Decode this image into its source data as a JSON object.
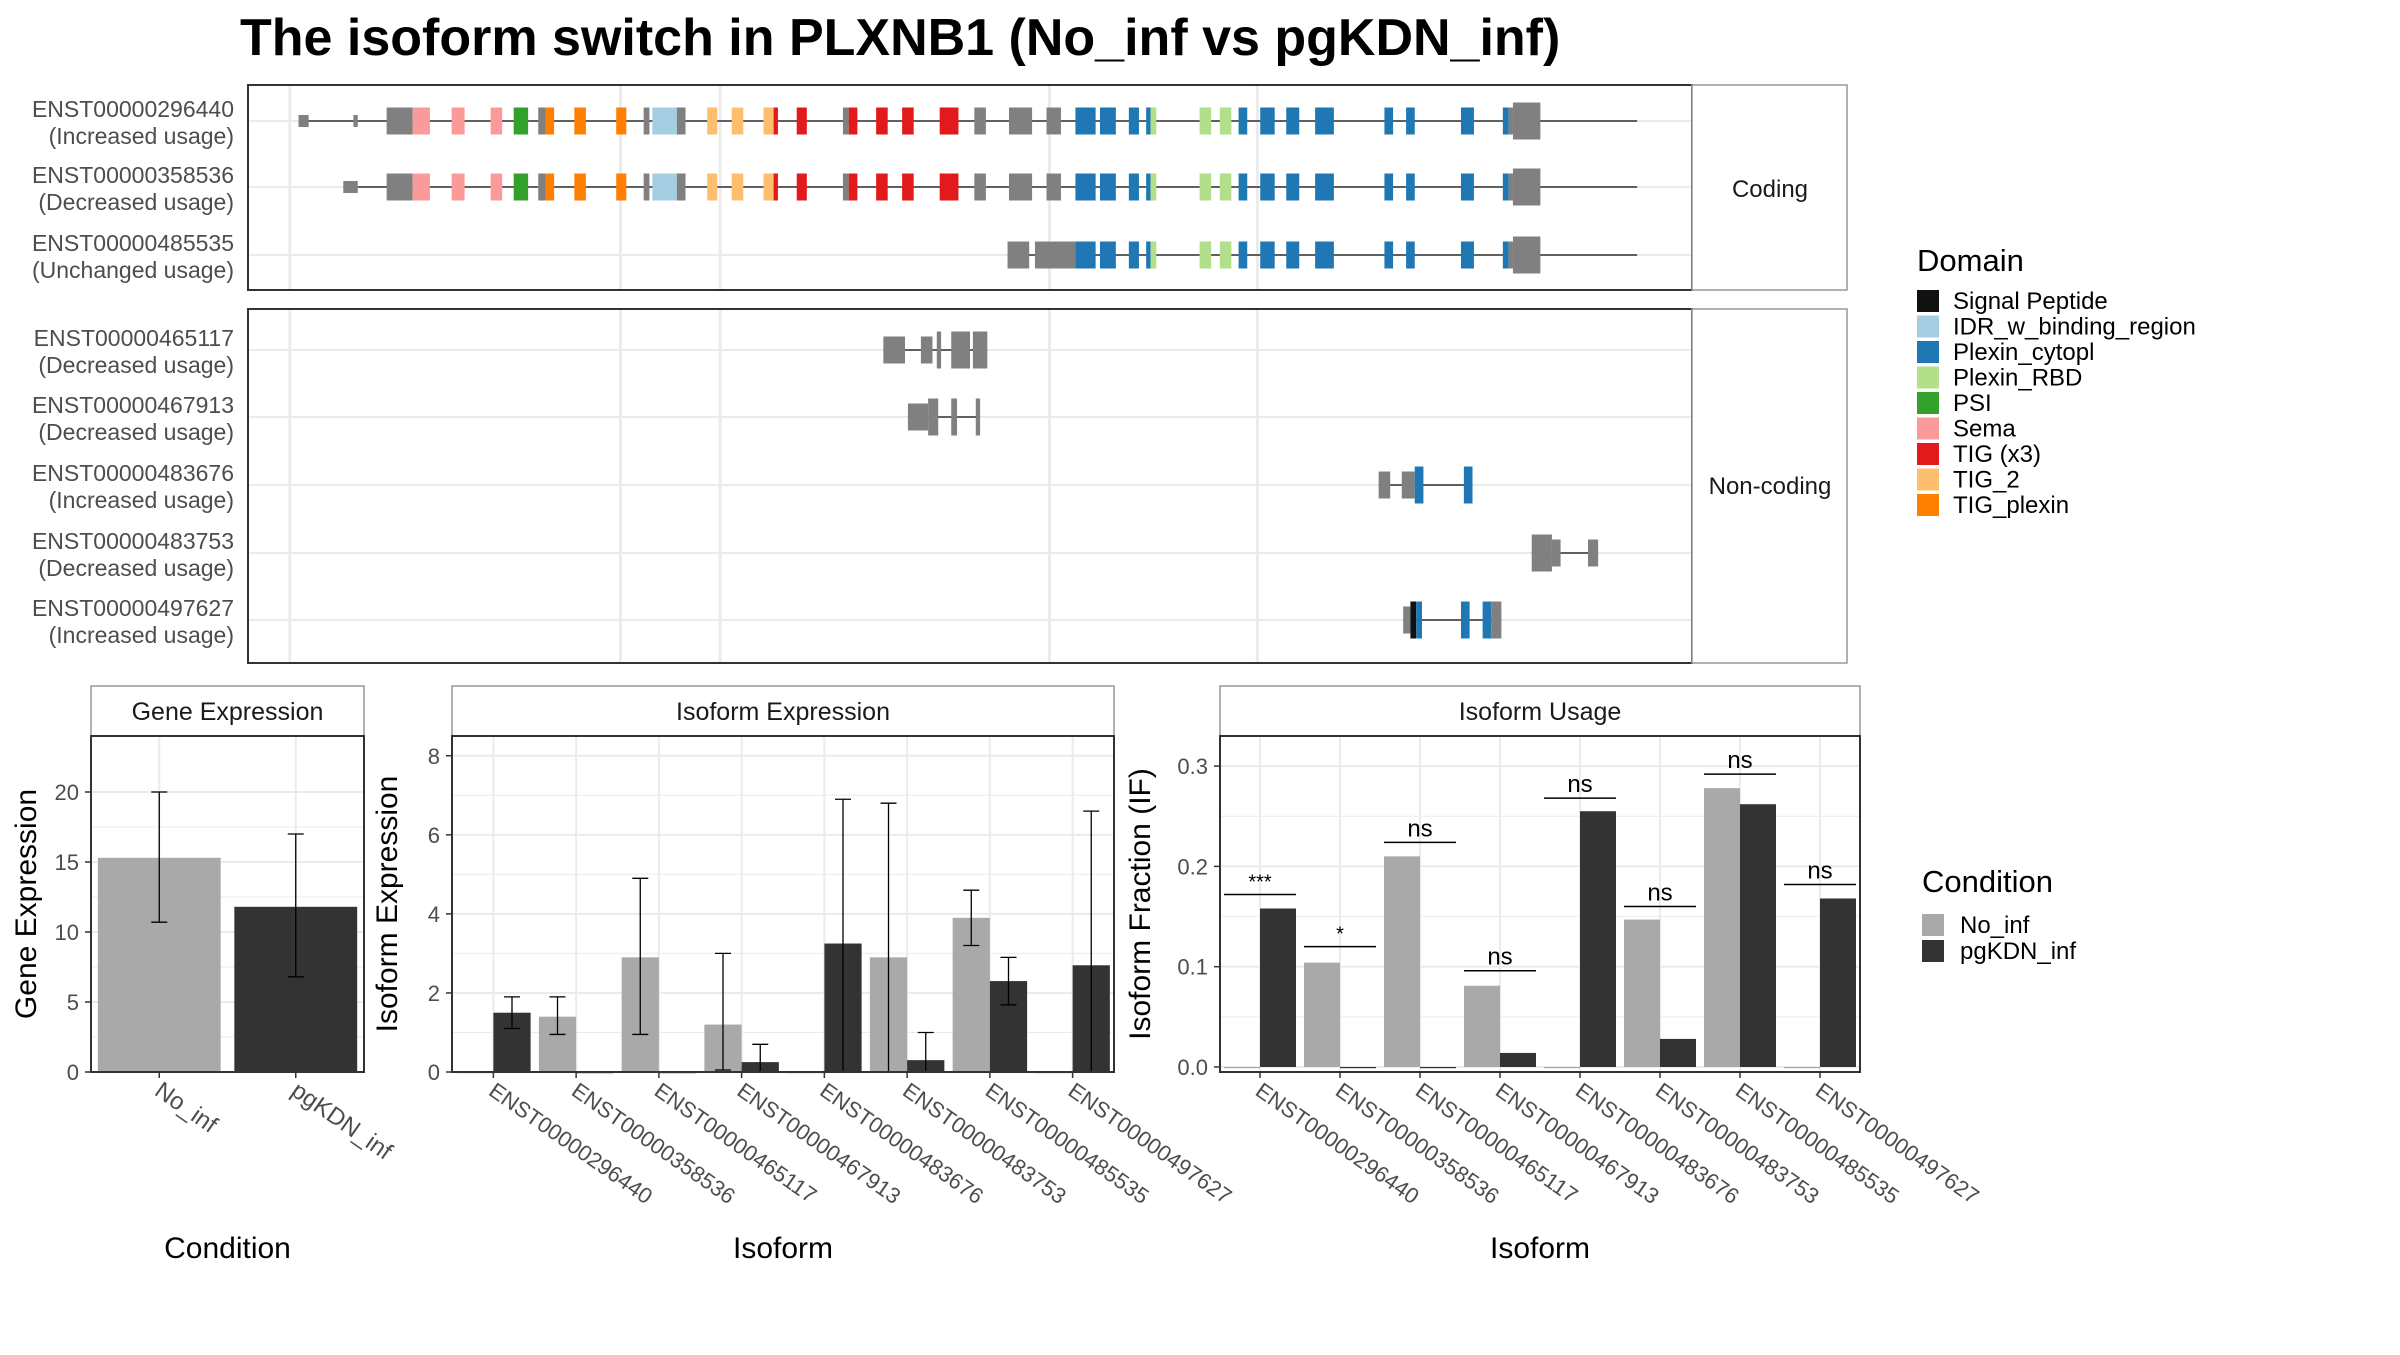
{
  "title": "The isoform switch in PLXNB1 (No_inf vs pgKDN_inf)",
  "colors": {
    "no_inf": "#A9A9A9",
    "pgkdn_inf": "#333333",
    "noncoding_exon": "#808080",
    "grid": "#EBEBEB",
    "panel_border": "#333333",
    "strip_border": "#999999"
  },
  "domain_legend": {
    "title": "Domain",
    "items": [
      {
        "label": "Signal Peptide",
        "color": "#111111"
      },
      {
        "label": "IDR_w_binding_region",
        "color": "#A6CEE3"
      },
      {
        "label": "Plexin_cytopl",
        "color": "#1F78B4"
      },
      {
        "label": "Plexin_RBD",
        "color": "#B2DF8A"
      },
      {
        "label": "PSI",
        "color": "#33A02C"
      },
      {
        "label": "Sema",
        "color": "#FB9A99"
      },
      {
        "label": "TIG (x3)",
        "color": "#E31A1C"
      },
      {
        "label": "TIG_2",
        "color": "#FDBF6F"
      },
      {
        "label": "TIG_plexin",
        "color": "#FF7F00"
      }
    ]
  },
  "condition_legend": {
    "title": "Condition",
    "items": [
      {
        "label": "No_inf",
        "color": "#A9A9A9"
      },
      {
        "label": "pgKDN_inf",
        "color": "#333333"
      }
    ]
  },
  "structure": {
    "coding_strip": "Coding",
    "noncoding_strip": "Non-coding",
    "coding": [
      {
        "id": "ENST00000296440",
        "usage": "(Increased usage)",
        "line": [
          0.035,
          0.962
        ],
        "exons": [
          [
            0.035,
            0.042,
            "N",
            0
          ],
          [
            0.073,
            0.076,
            "N",
            0
          ],
          [
            0.096,
            0.114,
            "N",
            1
          ],
          [
            0.114,
            0.126,
            "Sema",
            1
          ],
          [
            0.141,
            0.15,
            "Sema",
            1
          ],
          [
            0.168,
            0.176,
            "Sema",
            1
          ],
          [
            0.184,
            0.194,
            "PSI",
            1
          ],
          [
            0.201,
            0.206,
            "N",
            1
          ],
          [
            0.206,
            0.212,
            "TIG_plexin",
            1
          ],
          [
            0.226,
            0.234,
            "TIG_plexin",
            1
          ],
          [
            0.255,
            0.262,
            "TIG_plexin",
            1
          ],
          [
            0.274,
            0.278,
            "N",
            1
          ],
          [
            0.28,
            0.297,
            "IDR",
            1
          ],
          [
            0.297,
            0.303,
            "N",
            1
          ],
          [
            0.318,
            0.325,
            "TIG_2",
            1
          ],
          [
            0.335,
            0.343,
            "TIG_2",
            1
          ],
          [
            0.357,
            0.364,
            "TIG_2",
            1
          ],
          [
            0.364,
            0.367,
            "TIG_x3",
            1
          ],
          [
            0.38,
            0.387,
            "TIG_x3",
            1
          ],
          [
            0.412,
            0.416,
            "N",
            1
          ],
          [
            0.416,
            0.422,
            "TIG_x3",
            1
          ],
          [
            0.435,
            0.443,
            "TIG_x3",
            1
          ],
          [
            0.453,
            0.461,
            "TIG_x3",
            1
          ],
          [
            0.479,
            0.492,
            "TIG_x3",
            1
          ],
          [
            0.503,
            0.511,
            "N",
            1
          ],
          [
            0.527,
            0.543,
            "N",
            1
          ],
          [
            0.553,
            0.563,
            "N",
            1
          ],
          [
            0.573,
            0.587,
            "Plexin_cytopl",
            1
          ],
          [
            0.59,
            0.601,
            "Plexin_cytopl",
            1
          ],
          [
            0.61,
            0.617,
            "Plexin_cytopl",
            1
          ],
          [
            0.622,
            0.625,
            "Plexin_cytopl",
            1
          ],
          [
            0.625,
            0.629,
            "Plexin_RBD",
            1
          ],
          [
            0.659,
            0.667,
            "Plexin_RBD",
            1
          ],
          [
            0.673,
            0.681,
            "Plexin_RBD",
            1
          ],
          [
            0.686,
            0.692,
            "Plexin_cytopl",
            1
          ],
          [
            0.701,
            0.711,
            "Plexin_cytopl",
            1
          ],
          [
            0.719,
            0.728,
            "Plexin_cytopl",
            1
          ],
          [
            0.739,
            0.752,
            "Plexin_cytopl",
            1
          ],
          [
            0.787,
            0.793,
            "Plexin_cytopl",
            1
          ],
          [
            0.802,
            0.808,
            "Plexin_cytopl",
            1
          ],
          [
            0.84,
            0.849,
            "Plexin_cytopl",
            1
          ],
          [
            0.869,
            0.873,
            "Plexin_cytopl",
            1
          ],
          [
            0.873,
            0.876,
            "N",
            1
          ],
          [
            0.876,
            0.895,
            "N",
            2
          ]
        ]
      },
      {
        "id": "ENST00000358536",
        "usage": "(Decreased usage)",
        "line": [
          0.066,
          0.962
        ],
        "exons": [
          [
            0.066,
            0.076,
            "N",
            0
          ],
          [
            0.119,
            0.122,
            "N",
            0
          ],
          [
            0.096,
            0.114,
            "N",
            1
          ],
          [
            0.114,
            0.126,
            "Sema",
            1
          ],
          [
            0.141,
            0.15,
            "Sema",
            1
          ],
          [
            0.168,
            0.176,
            "Sema",
            1
          ],
          [
            0.184,
            0.194,
            "PSI",
            1
          ],
          [
            0.201,
            0.206,
            "N",
            1
          ],
          [
            0.206,
            0.212,
            "TIG_plexin",
            1
          ],
          [
            0.226,
            0.234,
            "TIG_plexin",
            1
          ],
          [
            0.255,
            0.262,
            "TIG_plexin",
            1
          ],
          [
            0.274,
            0.278,
            "N",
            1
          ],
          [
            0.28,
            0.297,
            "IDR",
            1
          ],
          [
            0.297,
            0.303,
            "N",
            1
          ],
          [
            0.318,
            0.325,
            "TIG_2",
            1
          ],
          [
            0.335,
            0.343,
            "TIG_2",
            1
          ],
          [
            0.357,
            0.364,
            "TIG_2",
            1
          ],
          [
            0.364,
            0.367,
            "TIG_x3",
            1
          ],
          [
            0.38,
            0.387,
            "TIG_x3",
            1
          ],
          [
            0.412,
            0.416,
            "N",
            1
          ],
          [
            0.416,
            0.422,
            "TIG_x3",
            1
          ],
          [
            0.435,
            0.443,
            "TIG_x3",
            1
          ],
          [
            0.453,
            0.461,
            "TIG_x3",
            1
          ],
          [
            0.479,
            0.492,
            "TIG_x3",
            1
          ],
          [
            0.503,
            0.511,
            "N",
            1
          ],
          [
            0.527,
            0.543,
            "N",
            1
          ],
          [
            0.553,
            0.563,
            "N",
            1
          ],
          [
            0.573,
            0.587,
            "Plexin_cytopl",
            1
          ],
          [
            0.59,
            0.601,
            "Plexin_cytopl",
            1
          ],
          [
            0.61,
            0.617,
            "Plexin_cytopl",
            1
          ],
          [
            0.622,
            0.625,
            "Plexin_cytopl",
            1
          ],
          [
            0.625,
            0.629,
            "Plexin_RBD",
            1
          ],
          [
            0.659,
            0.667,
            "Plexin_RBD",
            1
          ],
          [
            0.673,
            0.681,
            "Plexin_RBD",
            1
          ],
          [
            0.686,
            0.692,
            "Plexin_cytopl",
            1
          ],
          [
            0.701,
            0.711,
            "Plexin_cytopl",
            1
          ],
          [
            0.719,
            0.728,
            "Plexin_cytopl",
            1
          ],
          [
            0.739,
            0.752,
            "Plexin_cytopl",
            1
          ],
          [
            0.787,
            0.793,
            "Plexin_cytopl",
            1
          ],
          [
            0.802,
            0.808,
            "Plexin_cytopl",
            1
          ],
          [
            0.84,
            0.849,
            "Plexin_cytopl",
            1
          ],
          [
            0.869,
            0.873,
            "Plexin_cytopl",
            1
          ],
          [
            0.873,
            0.876,
            "N",
            1
          ],
          [
            0.876,
            0.895,
            "N",
            2
          ]
        ]
      },
      {
        "id": "ENST00000485535",
        "usage": "(Unchanged usage)",
        "line": [
          0.526,
          0.962
        ],
        "exons": [
          [
            0.526,
            0.541,
            "N",
            1
          ],
          [
            0.545,
            0.573,
            "N",
            1
          ],
          [
            0.573,
            0.587,
            "Plexin_cytopl",
            1
          ],
          [
            0.59,
            0.601,
            "Plexin_cytopl",
            1
          ],
          [
            0.61,
            0.617,
            "Plexin_cytopl",
            1
          ],
          [
            0.622,
            0.625,
            "Plexin_cytopl",
            1
          ],
          [
            0.625,
            0.629,
            "Plexin_RBD",
            1
          ],
          [
            0.659,
            0.667,
            "Plexin_RBD",
            1
          ],
          [
            0.673,
            0.681,
            "Plexin_RBD",
            1
          ],
          [
            0.686,
            0.692,
            "Plexin_cytopl",
            1
          ],
          [
            0.701,
            0.711,
            "Plexin_cytopl",
            1
          ],
          [
            0.719,
            0.728,
            "Plexin_cytopl",
            1
          ],
          [
            0.739,
            0.752,
            "Plexin_cytopl",
            1
          ],
          [
            0.787,
            0.793,
            "Plexin_cytopl",
            1
          ],
          [
            0.802,
            0.808,
            "Plexin_cytopl",
            1
          ],
          [
            0.84,
            0.849,
            "Plexin_cytopl",
            1
          ],
          [
            0.869,
            0.873,
            "Plexin_cytopl",
            1
          ],
          [
            0.873,
            0.876,
            "N",
            1
          ],
          [
            0.876,
            0.895,
            "N",
            2
          ]
        ]
      }
    ],
    "noncoding": [
      {
        "id": "ENST00000465117",
        "usage": "(Decreased usage)",
        "line": [
          0.44,
          0.512
        ],
        "exons": [
          [
            0.44,
            0.455,
            "N",
            1
          ],
          [
            0.466,
            0.474,
            "N",
            1
          ],
          [
            0.477,
            0.48,
            "N",
            2
          ],
          [
            0.487,
            0.5,
            "N",
            2
          ],
          [
            0.502,
            0.512,
            "N",
            2
          ]
        ]
      },
      {
        "id": "ENST00000467913",
        "usage": "(Decreased usage)",
        "line": [
          0.457,
          0.507
        ],
        "exons": [
          [
            0.457,
            0.471,
            "N",
            1
          ],
          [
            0.471,
            0.478,
            "N",
            2
          ],
          [
            0.487,
            0.491,
            "N",
            2
          ],
          [
            0.504,
            0.507,
            "N",
            2
          ]
        ]
      },
      {
        "id": "ENST00000483676",
        "usage": "(Increased usage)",
        "line": [
          0.783,
          0.848
        ],
        "exons": [
          [
            0.783,
            0.791,
            "N",
            1
          ],
          [
            0.799,
            0.808,
            "N",
            1
          ],
          [
            0.808,
            0.814,
            "Plexin_cytopl",
            2
          ],
          [
            0.842,
            0.848,
            "Plexin_cytopl",
            2
          ]
        ]
      },
      {
        "id": "ENST00000483753",
        "usage": "(Decreased usage)",
        "line": [
          0.889,
          0.935
        ],
        "exons": [
          [
            0.889,
            0.903,
            "N",
            2
          ],
          [
            0.903,
            0.909,
            "N",
            1
          ],
          [
            0.928,
            0.935,
            "N",
            1
          ]
        ]
      },
      {
        "id": "ENST00000497627",
        "usage": "(Increased usage)",
        "line": [
          0.8,
          0.868
        ],
        "exons": [
          [
            0.8,
            0.805,
            "N",
            1
          ],
          [
            0.805,
            0.809,
            "Signal Peptide",
            2
          ],
          [
            0.809,
            0.813,
            "Plexin_cytopl",
            2
          ],
          [
            0.84,
            0.846,
            "Plexin_cytopl",
            2
          ],
          [
            0.855,
            0.861,
            "Plexin_cytopl",
            2
          ],
          [
            0.861,
            0.868,
            "N",
            2
          ]
        ]
      }
    ]
  },
  "chart_data": [
    {
      "type": "bar",
      "title": "Gene Expression",
      "xlabel": "Condition",
      "ylabel": "Gene Expression",
      "ylim": [
        0,
        24
      ],
      "yticks": [
        0,
        5,
        10,
        15,
        20
      ],
      "categories": [
        "No_inf",
        "pgKDN_inf"
      ],
      "values": [
        15.3,
        11.8
      ],
      "error_low": [
        10.7,
        6.8
      ],
      "error_high": [
        20.0,
        17.0
      ]
    },
    {
      "type": "bar",
      "title": "Isoform Expression",
      "xlabel": "Isoform",
      "ylabel": "Isoform Expression",
      "ylim": [
        0,
        8.5
      ],
      "yticks": [
        0,
        2,
        4,
        6,
        8
      ],
      "categories": [
        "ENST00000296440",
        "ENST00000358536",
        "ENST00000465117",
        "ENST00000467913",
        "ENST00000483676",
        "ENST00000483753",
        "ENST00000485535",
        "ENST00000497627"
      ],
      "series": [
        {
          "name": "No_inf",
          "values": [
            0.0,
            1.4,
            2.9,
            1.2,
            0.0,
            2.9,
            3.9,
            0.0
          ],
          "error_low": [
            0.0,
            0.95,
            0.95,
            0.05,
            0.0,
            0.0,
            3.2,
            0.0
          ],
          "error_high": [
            0.0,
            1.9,
            4.9,
            3.0,
            0.0,
            6.8,
            4.6,
            0.0
          ]
        },
        {
          "name": "pgKDN_inf",
          "values": [
            1.5,
            0.0,
            0.0,
            0.25,
            3.25,
            0.3,
            2.3,
            2.7
          ],
          "error_low": [
            1.1,
            0.0,
            0.0,
            0.0,
            0.0,
            0.0,
            1.7,
            0.0
          ],
          "error_high": [
            1.9,
            0.0,
            0.0,
            0.7,
            6.9,
            1.0,
            2.9,
            6.6
          ]
        }
      ]
    },
    {
      "type": "bar",
      "title": "Isoform Usage",
      "xlabel": "Isoform",
      "ylabel": "Isoform Fraction (IF)",
      "ylim": [
        -0.005,
        0.33
      ],
      "yticks": [
        0.0,
        0.1,
        0.2,
        0.3
      ],
      "categories": [
        "ENST00000296440",
        "ENST00000358536",
        "ENST00000465117",
        "ENST00000467913",
        "ENST00000483676",
        "ENST00000483753",
        "ENST00000485535",
        "ENST00000497627"
      ],
      "series": [
        {
          "name": "No_inf",
          "values": [
            0.0,
            0.104,
            0.21,
            0.081,
            0.0,
            0.147,
            0.278,
            0.0
          ]
        },
        {
          "name": "pgKDN_inf",
          "values": [
            0.158,
            0.0,
            0.0,
            0.014,
            0.255,
            0.028,
            0.262,
            0.168
          ]
        }
      ],
      "significance": [
        "***",
        "*",
        "ns",
        "ns",
        "ns",
        "ns",
        "ns",
        "ns"
      ],
      "significance_y": [
        0.172,
        0.12,
        0.224,
        0.096,
        0.268,
        0.16,
        0.292,
        0.182
      ]
    }
  ]
}
